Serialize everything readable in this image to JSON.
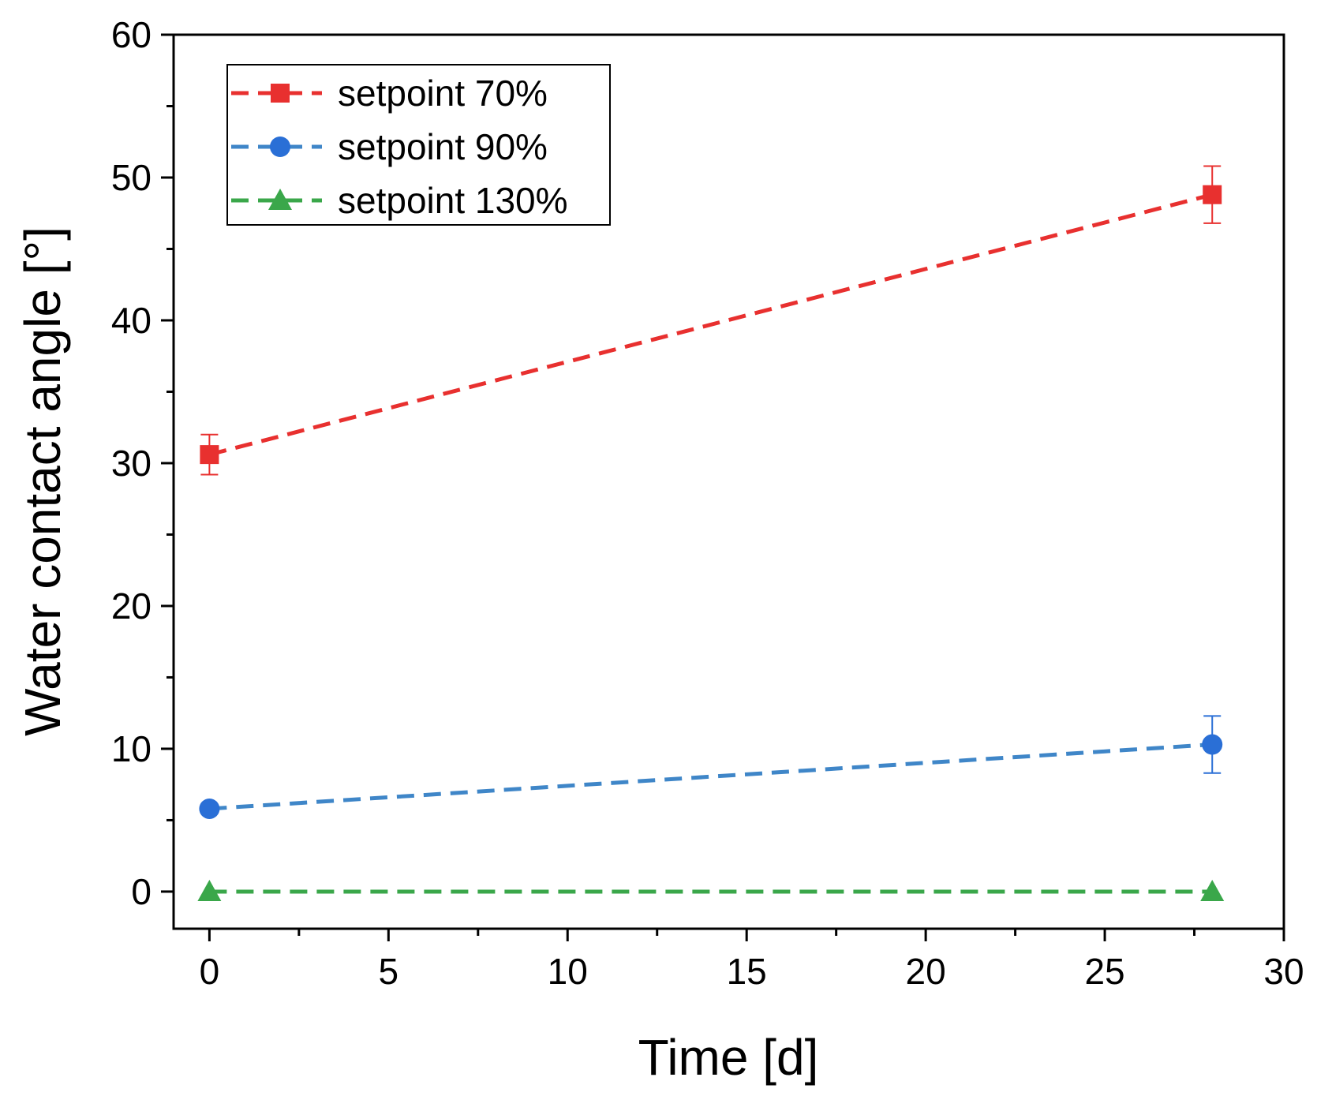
{
  "chart_data": {
    "type": "line",
    "title": "",
    "xlabel": "Time [d]",
    "ylabel": "Water contact angle [°]",
    "xlim": [
      -1,
      30
    ],
    "ylim": [
      -2.6,
      60
    ],
    "xticks": [
      0,
      5,
      10,
      15,
      20,
      25,
      30
    ],
    "xticks_minor": [
      2.5,
      7.5,
      12.5,
      17.5,
      22.5,
      27.5
    ],
    "yticks": [
      0,
      10,
      20,
      30,
      40,
      50,
      60
    ],
    "yticks_minor": [
      5,
      15,
      25,
      35,
      45,
      55
    ],
    "xtick_labels": [
      "0",
      "5",
      "10",
      "15",
      "20",
      "25",
      "30"
    ],
    "ytick_labels": [
      "0",
      "10",
      "20",
      "30",
      "40",
      "50",
      "60"
    ],
    "grid": false,
    "legend_position": "top-left",
    "series": [
      {
        "name": "setpoint 70%",
        "color": "#e8302f",
        "marker": "square",
        "x": [
          0,
          28
        ],
        "y": [
          30.6,
          48.8
        ],
        "err": [
          1.4,
          2.0
        ]
      },
      {
        "name": "setpoint 90%",
        "color": "#2a6fd6",
        "line_color": "#3f86c8",
        "marker": "circle",
        "x": [
          0,
          28
        ],
        "y": [
          5.8,
          10.3
        ],
        "err": [
          0,
          2.0
        ]
      },
      {
        "name": "setpoint 130%",
        "color": "#3aa74a",
        "marker": "triangle",
        "x": [
          0,
          28
        ],
        "y": [
          0,
          0
        ],
        "err": [
          0,
          0
        ]
      }
    ]
  }
}
